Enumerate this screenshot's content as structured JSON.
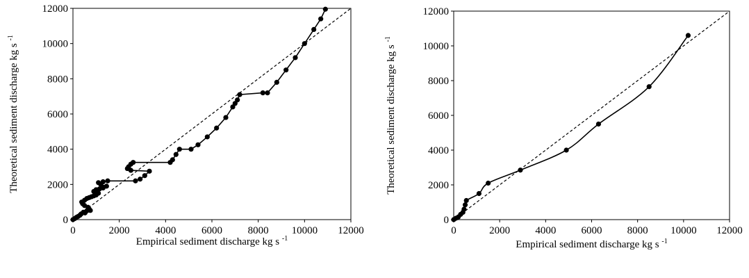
{
  "chart_data": [
    {
      "type": "scatter",
      "title": "",
      "xlabel": "Empirical sediment discharge kg s",
      "xlabel_sup": "-1",
      "ylabel": "Theoretical sediment discharge kg s",
      "ylabel_sup": "-1",
      "xlim": [
        0,
        12000
      ],
      "ylim": [
        0,
        12000
      ],
      "xticks": [
        "0",
        "2000",
        "4000",
        "6000",
        "8000",
        "10000",
        "12000"
      ],
      "yticks": [
        "0",
        "2000",
        "4000",
        "6000",
        "8000",
        "10000",
        "12000"
      ],
      "grid": false,
      "legend": "none",
      "reference_line": {
        "style": "dashed",
        "points": [
          [
            0,
            0
          ],
          [
            12000,
            12000
          ]
        ]
      },
      "series": [
        {
          "marker": "circle",
          "line": "solid",
          "points": [
            [
              0,
              0
            ],
            [
              80,
              60
            ],
            [
              150,
              130
            ],
            [
              220,
              180
            ],
            [
              300,
              250
            ],
            [
              350,
              320
            ],
            [
              450,
              420
            ],
            [
              520,
              380
            ],
            [
              600,
              500
            ],
            [
              700,
              600
            ],
            [
              750,
              520
            ],
            [
              650,
              700
            ],
            [
              500,
              800
            ],
            [
              420,
              900
            ],
            [
              380,
              1000
            ],
            [
              500,
              1100
            ],
            [
              600,
              1200
            ],
            [
              700,
              1250
            ],
            [
              800,
              1300
            ],
            [
              900,
              1350
            ],
            [
              1000,
              1400
            ],
            [
              1100,
              1500
            ],
            [
              1000,
              1550
            ],
            [
              900,
              1600
            ],
            [
              1000,
              1700
            ],
            [
              1150,
              1750
            ],
            [
              1300,
              1800
            ],
            [
              1450,
              1900
            ],
            [
              1200,
              2000
            ],
            [
              1100,
              2100
            ],
            [
              1300,
              2150
            ],
            [
              1500,
              2200
            ],
            [
              2700,
              2200
            ],
            [
              2900,
              2300
            ],
            [
              3100,
              2500
            ],
            [
              3300,
              2750
            ],
            [
              2500,
              2800
            ],
            [
              2350,
              2900
            ],
            [
              2400,
              3000
            ],
            [
              2500,
              3150
            ],
            [
              2600,
              3250
            ],
            [
              4200,
              3250
            ],
            [
              4300,
              3400
            ],
            [
              4450,
              3700
            ],
            [
              4600,
              4000
            ],
            [
              5100,
              4000
            ],
            [
              5400,
              4250
            ],
            [
              5800,
              4700
            ],
            [
              6200,
              5200
            ],
            [
              6600,
              5800
            ],
            [
              6900,
              6400
            ],
            [
              7000,
              6600
            ],
            [
              7100,
              6800
            ],
            [
              7200,
              7100
            ],
            [
              8200,
              7200
            ],
            [
              8400,
              7200
            ],
            [
              8800,
              7800
            ],
            [
              9200,
              8500
            ],
            [
              9600,
              9200
            ],
            [
              10000,
              10000
            ],
            [
              10400,
              10800
            ],
            [
              10700,
              11400
            ],
            [
              10900,
              11950
            ]
          ]
        }
      ]
    },
    {
      "type": "scatter",
      "title": "",
      "xlabel": "Empirical sediment discharge kg s",
      "xlabel_sup": "-1",
      "ylabel": "Theoretical sediment discharge kg s",
      "ylabel_sup": "-1",
      "xlim": [
        0,
        12000
      ],
      "ylim": [
        0,
        12000
      ],
      "xticks": [
        "0",
        "2000",
        "4000",
        "6000",
        "8000",
        "10000",
        "12000"
      ],
      "yticks": [
        "0",
        "2000",
        "4000",
        "6000",
        "8000",
        "10000",
        "12000"
      ],
      "grid": false,
      "legend": "none",
      "reference_line": {
        "style": "dashed",
        "points": [
          [
            0,
            0
          ],
          [
            12000,
            12000
          ]
        ]
      },
      "series": [
        {
          "marker": "circle",
          "line": "smooth",
          "points": [
            [
              0,
              0
            ],
            [
              100,
              80
            ],
            [
              200,
              150
            ],
            [
              300,
              300
            ],
            [
              400,
              420
            ],
            [
              450,
              600
            ],
            [
              500,
              850
            ],
            [
              550,
              1100
            ],
            [
              1100,
              1500
            ],
            [
              1500,
              2100
            ],
            [
              2900,
              2850
            ],
            [
              4900,
              4000
            ],
            [
              6300,
              5500
            ],
            [
              8500,
              7650
            ],
            [
              10200,
              10600
            ]
          ]
        }
      ]
    }
  ]
}
